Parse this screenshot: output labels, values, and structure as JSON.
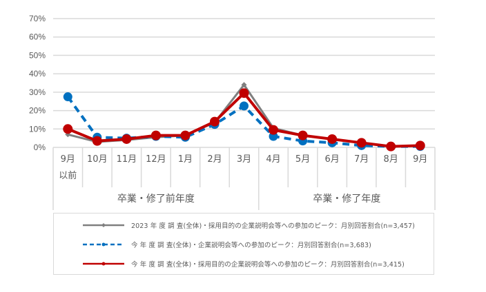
{
  "chart_data": {
    "type": "line",
    "title": "",
    "xlabel": "",
    "ylabel": "",
    "ylim": [
      0,
      70
    ],
    "yticks": [
      "0%",
      "10%",
      "20%",
      "30%",
      "40%",
      "50%",
      "60%",
      "70%"
    ],
    "grid": true,
    "legend_position": "bottom",
    "categories": [
      "9月 以前",
      "10月",
      "11月",
      "12月",
      "1月",
      "2月",
      "3月",
      "4月",
      "5月",
      "6月",
      "7月",
      "8月",
      "9月"
    ],
    "category_labels": [
      [
        "9月",
        "以前"
      ],
      [
        "10月"
      ],
      [
        "11月"
      ],
      [
        "12月"
      ],
      [
        "1月"
      ],
      [
        "2月"
      ],
      [
        "3月"
      ],
      [
        "4月"
      ],
      [
        "5月"
      ],
      [
        "6月"
      ],
      [
        "7月"
      ],
      [
        "8月"
      ],
      [
        "9月"
      ]
    ],
    "groups": [
      {
        "label": "卒業・修了前年度",
        "start": 0,
        "end": 6
      },
      {
        "label": "卒業・修了年度",
        "start": 7,
        "end": 12
      }
    ],
    "series": [
      {
        "name": "2023 年 度 調 査(全体)・採用目的の企業説明会等への参加のピーク：月別回答割合(n=3,457)",
        "color": "#7f7f7f",
        "style": "solid",
        "marker": "small-diamond",
        "values": [
          7,
          3,
          4,
          5.5,
          6.5,
          13.5,
          34,
          10.5,
          6.5,
          4.5,
          2.5,
          0.5,
          1
        ]
      },
      {
        "name": "今 年 度 調 査(全体)・企業説明会等への参加のピーク：月別回答割合(n=3,683)",
        "color": "#0070c0",
        "style": "dashed",
        "marker": "circle",
        "values": [
          27.5,
          5.5,
          5,
          6,
          5.5,
          12.5,
          22.5,
          6,
          3.5,
          2.5,
          1,
          0.5,
          0.5
        ]
      },
      {
        "name": "今 年 度 調 査(全体)・採用目的の企業説明会等への参加のピーク：月別回答割合(n=3,415)",
        "color": "#c00000",
        "style": "solid",
        "marker": "circle",
        "values": [
          10,
          3.5,
          4.5,
          6.5,
          6.5,
          14,
          29.5,
          9.5,
          6.5,
          4.5,
          2.5,
          0.5,
          1
        ]
      }
    ]
  },
  "legend": {
    "items": [
      {
        "label": "2023 年 度 調 査(全体)・採用目的の企業説明会等への参加のピーク：月別回答割合(n=3,457)"
      },
      {
        "label": "今 年 度 調 査(全体)・企業説明会等への参加のピーク：月別回答割合(n=3,683)"
      },
      {
        "label": "今 年 度 調 査(全体)・採用目的の企業説明会等への参加のピーク：月別回答割合(n=3,415)"
      }
    ]
  }
}
